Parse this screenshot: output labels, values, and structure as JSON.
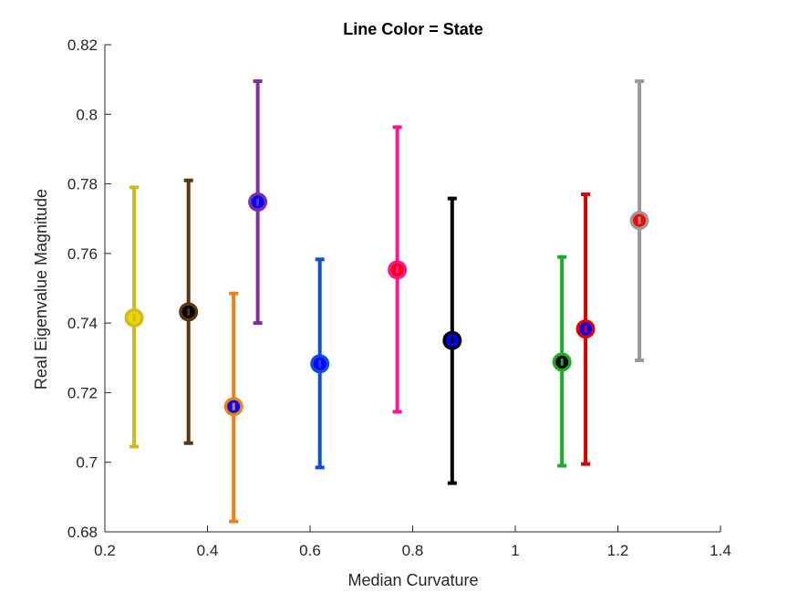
{
  "chart_data": {
    "type": "scatter",
    "title": "Line Color = State",
    "xlabel": "Median Curvature",
    "ylabel": "Real Eigenvalue Magnitude",
    "xlim": [
      0.2,
      1.4
    ],
    "ylim": [
      0.68,
      0.82
    ],
    "xticks": [
      "0.2",
      "0.4",
      "0.6",
      "0.8",
      "1",
      "1.2",
      "1.4"
    ],
    "yticks": [
      "0.68",
      "0.7",
      "0.72",
      "0.74",
      "0.76",
      "0.78",
      "0.8",
      "0.82"
    ],
    "grid": false,
    "points": [
      {
        "x": 0.257,
        "y": 0.7415,
        "lower": 0.7045,
        "upper": 0.779,
        "color": "#d4b81e",
        "marker_color": "#e8d800",
        "bar_color": "#ff0000"
      },
      {
        "x": 0.363,
        "y": 0.7432,
        "lower": 0.7055,
        "upper": 0.781,
        "color": "#5a3510",
        "marker_color": "#000000",
        "bar_color": "#000000"
      },
      {
        "x": 0.451,
        "y": 0.716,
        "lower": 0.683,
        "upper": 0.7485,
        "color": "#f07f17",
        "marker_color": "#0000ff",
        "bar_color": "#0000ff"
      },
      {
        "x": 0.498,
        "y": 0.7748,
        "lower": 0.74,
        "upper": 0.8095,
        "color": "#7e2f9e",
        "marker_color": "#0000ff",
        "bar_color": "#0000ff"
      },
      {
        "x": 0.619,
        "y": 0.7283,
        "lower": 0.6985,
        "upper": 0.7583,
        "color": "#0b4fd6",
        "marker_color": "#0000ff",
        "bar_color": "#0000ff"
      },
      {
        "x": 0.77,
        "y": 0.7553,
        "lower": 0.7145,
        "upper": 0.7963,
        "color": "#ff1493",
        "marker_color": "#ff0000",
        "bar_color": "#ff0000"
      },
      {
        "x": 0.877,
        "y": 0.735,
        "lower": 0.694,
        "upper": 0.7758,
        "color": "#000000",
        "marker_color": "#0000ff",
        "bar_color": "#0000ff"
      },
      {
        "x": 1.091,
        "y": 0.7288,
        "lower": 0.699,
        "upper": 0.759,
        "color": "#1faa2a",
        "marker_color": "#000000",
        "bar_color": "#000000"
      },
      {
        "x": 1.137,
        "y": 0.7383,
        "lower": 0.6995,
        "upper": 0.777,
        "color": "#e00000",
        "marker_color": "#0000ff",
        "bar_color": "#0000ff"
      },
      {
        "x": 1.242,
        "y": 0.7695,
        "lower": 0.7293,
        "upper": 0.8095,
        "color": "#999999",
        "marker_color": "#ff0000",
        "bar_color": "#ff0000"
      }
    ]
  }
}
